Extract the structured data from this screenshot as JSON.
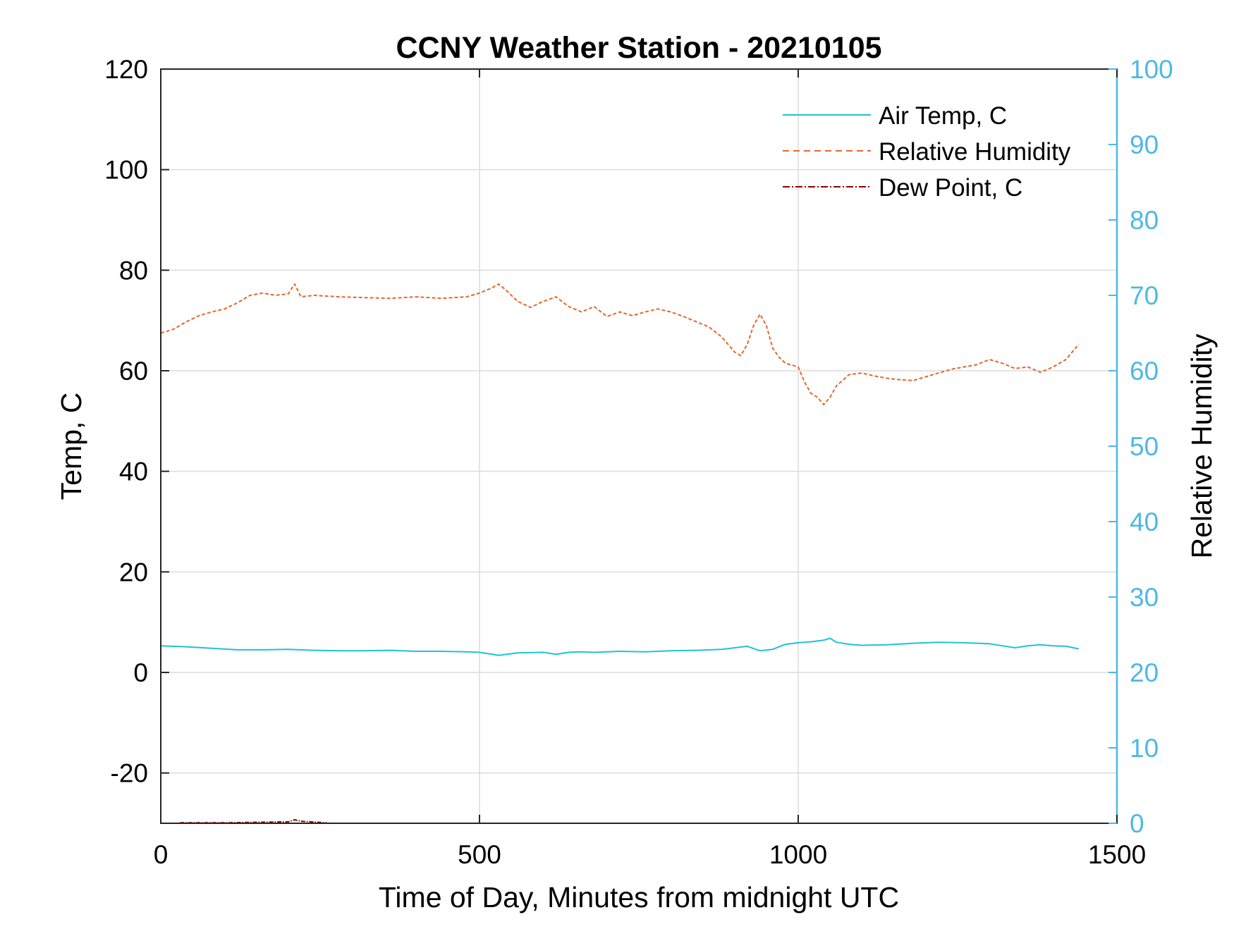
{
  "chart_data": {
    "type": "line",
    "title": "CCNY Weather Station - 20210105",
    "xlabel": "Time of Day, Minutes from midnight UTC",
    "ylabel_left": "Temp, C",
    "ylabel_right": "Relative Humidity",
    "xlim": [
      0,
      1500
    ],
    "ylim_left": [
      -30,
      120
    ],
    "ylim_right": [
      0,
      100
    ],
    "x_ticks": [
      0,
      500,
      1000,
      1500
    ],
    "y_left_ticks": [
      -20,
      0,
      20,
      40,
      60,
      80,
      100,
      120
    ],
    "y_right_ticks": [
      0,
      10,
      20,
      30,
      40,
      50,
      60,
      70,
      80,
      90,
      100
    ],
    "grid": true,
    "legend_position": "top-right",
    "colors": {
      "air_temp": "#1fc3d6",
      "relative_humidity": "#e0692e",
      "dew_point": "#8b0000",
      "right_axis": "#4db8e6",
      "grid": "#dcdcdc"
    },
    "series": [
      {
        "name": "Air Temp, C",
        "axis": "left",
        "style": "solid",
        "x": [
          0,
          40,
          80,
          120,
          160,
          200,
          240,
          280,
          320,
          360,
          400,
          440,
          480,
          500,
          520,
          530,
          560,
          600,
          620,
          640,
          660,
          680,
          700,
          720,
          760,
          800,
          840,
          880,
          920,
          940,
          960,
          980,
          1000,
          1020,
          1040,
          1050,
          1060,
          1080,
          1100,
          1140,
          1180,
          1220,
          1260,
          1300,
          1320,
          1340,
          1360,
          1380,
          1400,
          1420,
          1440
        ],
        "y": [
          5.3,
          5.1,
          4.8,
          4.5,
          4.5,
          4.6,
          4.4,
          4.3,
          4.3,
          4.4,
          4.2,
          4.2,
          4.1,
          4.0,
          3.6,
          3.4,
          3.9,
          4.0,
          3.6,
          4.0,
          4.1,
          4.0,
          4.1,
          4.2,
          4.1,
          4.3,
          4.4,
          4.6,
          5.2,
          4.3,
          4.6,
          5.6,
          5.9,
          6.1,
          6.4,
          6.8,
          6.0,
          5.6,
          5.4,
          5.5,
          5.8,
          6.0,
          5.9,
          5.7,
          5.3,
          4.9,
          5.3,
          5.5,
          5.3,
          5.2,
          4.7
        ]
      },
      {
        "name": "Relative Humidity",
        "axis": "right",
        "style": "dashed",
        "x": [
          0,
          20,
          40,
          60,
          80,
          100,
          120,
          140,
          160,
          180,
          200,
          210,
          220,
          240,
          280,
          320,
          360,
          400,
          440,
          480,
          500,
          520,
          530,
          540,
          560,
          580,
          600,
          620,
          640,
          660,
          680,
          700,
          720,
          740,
          760,
          780,
          800,
          820,
          840,
          860,
          880,
          900,
          910,
          920,
          930,
          940,
          950,
          960,
          970,
          980,
          1000,
          1010,
          1020,
          1030,
          1040,
          1050,
          1060,
          1080,
          1100,
          1120,
          1140,
          1160,
          1180,
          1200,
          1220,
          1240,
          1260,
          1280,
          1300,
          1320,
          1340,
          1360,
          1380,
          1400,
          1420,
          1440
        ],
        "y": [
          65.0,
          65.5,
          66.5,
          67.3,
          67.8,
          68.2,
          69.0,
          70.0,
          70.3,
          70.0,
          70.2,
          71.5,
          69.8,
          70.0,
          69.8,
          69.7,
          69.6,
          69.8,
          69.6,
          69.8,
          70.3,
          71.0,
          71.5,
          70.8,
          69.2,
          68.4,
          69.2,
          69.8,
          68.5,
          67.8,
          68.5,
          67.2,
          67.8,
          67.3,
          67.8,
          68.2,
          67.8,
          67.2,
          66.5,
          65.8,
          64.5,
          62.5,
          62.0,
          63.5,
          66.0,
          67.5,
          66.0,
          63.0,
          61.8,
          61.0,
          60.5,
          58.5,
          57.0,
          56.5,
          55.5,
          56.5,
          58.0,
          59.5,
          59.7,
          59.3,
          59.0,
          58.8,
          58.7,
          59.2,
          59.7,
          60.2,
          60.5,
          60.8,
          61.5,
          61.0,
          60.3,
          60.5,
          59.8,
          60.5,
          61.5,
          63.5
        ]
      },
      {
        "name": "Dew Point, C",
        "axis": "left",
        "style": "dash-dot",
        "x": [
          30,
          100,
          150,
          200,
          210,
          220,
          260
        ],
        "y": [
          -29.9,
          -29.9,
          -29.8,
          -29.7,
          -29.3,
          -29.6,
          -29.9
        ]
      }
    ]
  }
}
